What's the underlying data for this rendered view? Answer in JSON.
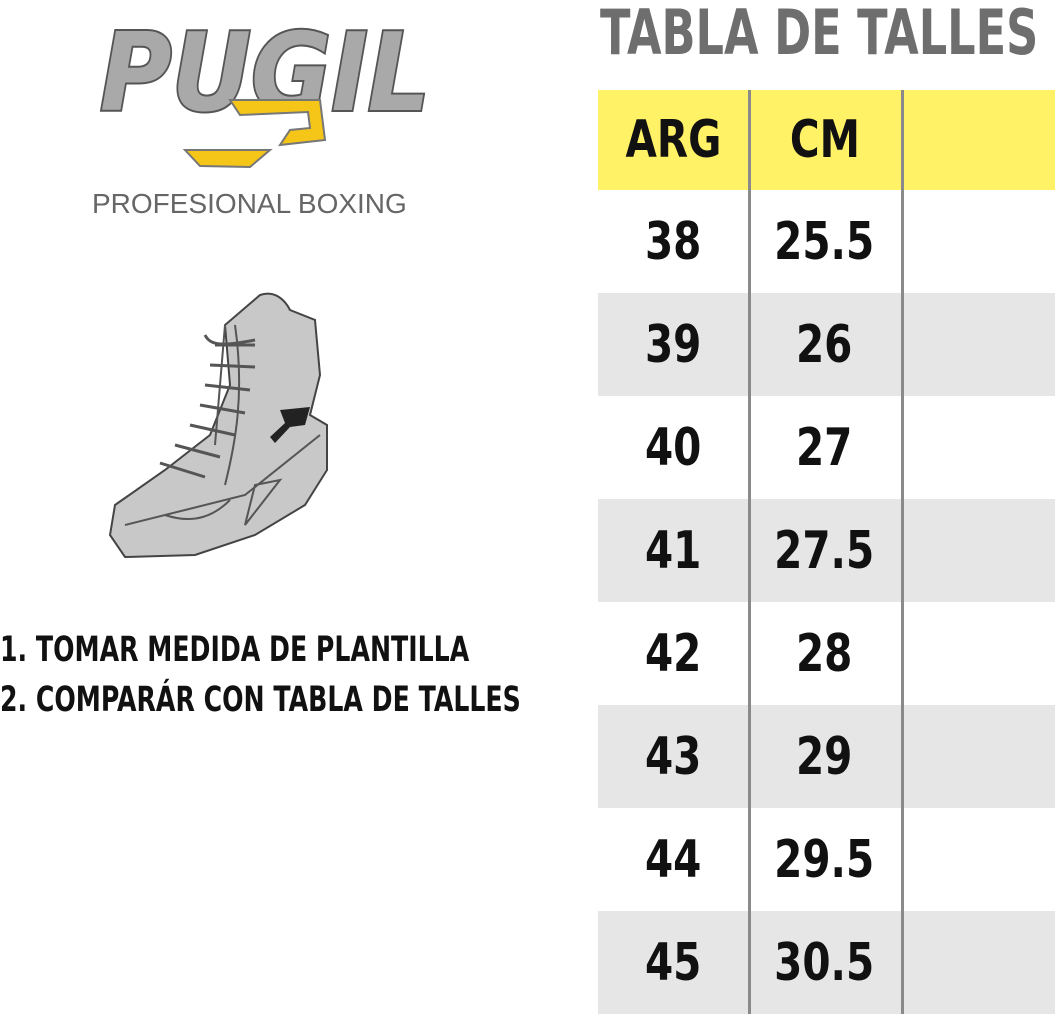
{
  "logo": {
    "brand": "PUGIL",
    "tagline": "PROFESIONAL BOXING"
  },
  "title": "TABLA DE TALLES",
  "table": {
    "headers": [
      "ARG",
      "CM"
    ],
    "rows": [
      [
        "38",
        "25.5"
      ],
      [
        "39",
        "26"
      ],
      [
        "40",
        "27"
      ],
      [
        "41",
        "27.5"
      ],
      [
        "42",
        "28"
      ],
      [
        "43",
        "29"
      ],
      [
        "44",
        "29.5"
      ],
      [
        "45",
        "30.5"
      ]
    ]
  },
  "instructions": [
    "1. TOMAR MEDIDA DE PLANTILLA",
    "2. COMPARÁR CON TABLA DE TALLES"
  ]
}
